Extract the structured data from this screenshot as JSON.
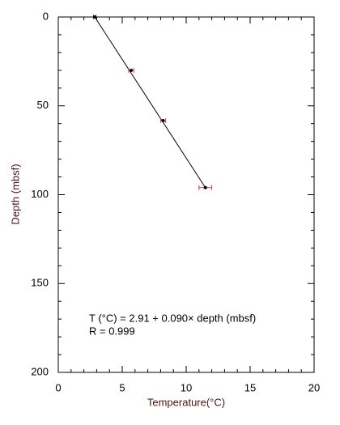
{
  "chart_data": {
    "type": "scatter",
    "xlabel": "Temperature(°C)",
    "ylabel": "Depth (mbsf)",
    "series": [
      {
        "color": "#000000",
        "errcolor": "#c04040",
        "x": [
          2.85,
          5.7,
          8.2,
          11.5
        ],
        "values": [
          0,
          30,
          58.3,
          96
        ],
        "xerr": [
          0.1,
          0.2,
          0.2,
          0.5
        ]
      }
    ],
    "xlim": [
      0,
      20
    ],
    "xticks": [
      0,
      5,
      10,
      15,
      20
    ],
    "ylim": [
      0,
      200
    ],
    "yticks": [
      0,
      50,
      100,
      150,
      200
    ],
    "yinverted": true,
    "annotations": [
      "T (°C) = 2.91 + 0.090× depth (mbsf)",
      "R = 0.999"
    ]
  }
}
